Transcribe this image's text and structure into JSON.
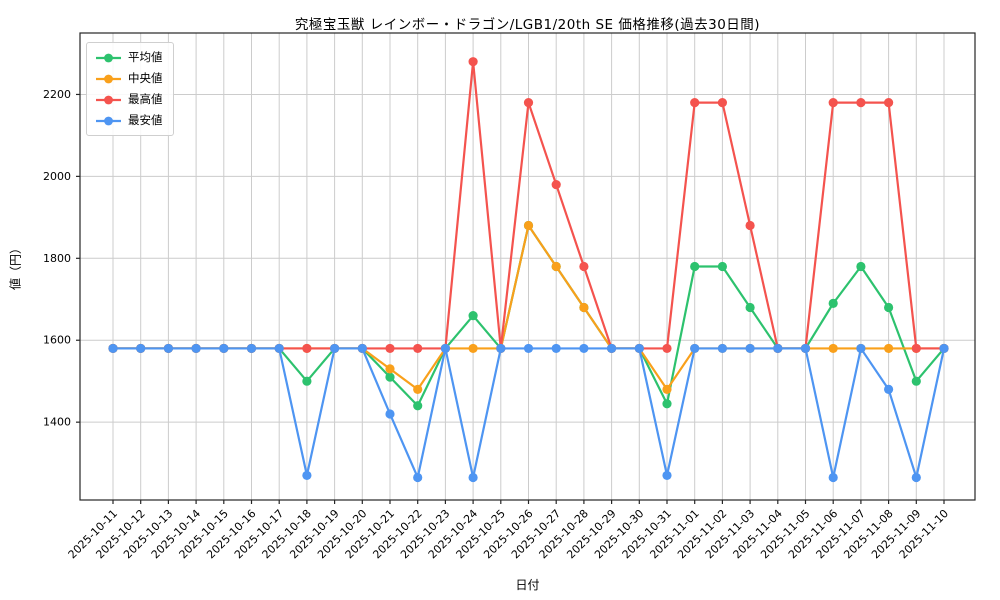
{
  "figure": {
    "title": "究極宝玉獣 レインボー・ドラゴン/LGB1/20th SE 価格推移(過去30日間)",
    "xlabel": "日付",
    "ylabel": "値（円）"
  },
  "chart_data": {
    "type": "line",
    "title": "究極宝玉獣 レインボー・ドラゴン/LGB1/20th SE 価格推移(過去30日間)",
    "xlabel": "日付",
    "ylabel": "値（円）",
    "x": [
      "2025-10-11",
      "2025-10-12",
      "2025-10-13",
      "2025-10-14",
      "2025-10-15",
      "2025-10-16",
      "2025-10-17",
      "2025-10-18",
      "2025-10-19",
      "2025-10-20",
      "2025-10-21",
      "2025-10-22",
      "2025-10-23",
      "2025-10-24",
      "2025-10-25",
      "2025-10-26",
      "2025-10-27",
      "2025-10-28",
      "2025-10-29",
      "2025-10-30",
      "2025-10-31",
      "2025-11-01",
      "2025-11-02",
      "2025-11-03",
      "2025-11-04",
      "2025-11-05",
      "2025-11-06",
      "2025-11-07",
      "2025-11-08",
      "2025-11-09",
      "2025-11-10"
    ],
    "series": [
      {
        "key": "avg",
        "name": "平均値",
        "color": "#2dc26e",
        "values": [
          1580,
          1580,
          1580,
          1580,
          1580,
          1580,
          1580,
          1500,
          1580,
          1580,
          1510,
          1440,
          1580,
          1660,
          1580,
          1880,
          1780,
          1680,
          1580,
          1580,
          1445,
          1780,
          1780,
          1680,
          1580,
          1580,
          1690,
          1780,
          1680,
          1500,
          1580
        ]
      },
      {
        "key": "median",
        "name": "中央値",
        "color": "#f9a01b",
        "values": [
          1580,
          1580,
          1580,
          1580,
          1580,
          1580,
          1580,
          1580,
          1580,
          1580,
          1530,
          1480,
          1580,
          1580,
          1580,
          1880,
          1780,
          1680,
          1580,
          1580,
          1480,
          1580,
          1580,
          1580,
          1580,
          1580,
          1580,
          1580,
          1580,
          1580,
          1580
        ]
      },
      {
        "key": "max",
        "name": "最高値",
        "color": "#f4534e",
        "values": [
          1580,
          1580,
          1580,
          1580,
          1580,
          1580,
          1580,
          1580,
          1580,
          1580,
          1580,
          1580,
          1580,
          2280,
          1580,
          2180,
          1980,
          1780,
          1580,
          1580,
          1580,
          2180,
          2180,
          1880,
          1580,
          1580,
          2180,
          2180,
          2180,
          1580,
          1580
        ]
      },
      {
        "key": "min",
        "name": "最安値",
        "color": "#4e95f2",
        "values": [
          1580,
          1580,
          1580,
          1580,
          1580,
          1580,
          1580,
          1270,
          1580,
          1580,
          1420,
          1265,
          1580,
          1265,
          1580,
          1580,
          1580,
          1580,
          1580,
          1580,
          1270,
          1580,
          1580,
          1580,
          1580,
          1580,
          1265,
          1580,
          1480,
          1265,
          1580
        ]
      }
    ],
    "yticks": [
      1400,
      1600,
      1800,
      2000,
      2200
    ],
    "ylim": [
      1210,
      2350
    ],
    "grid": true,
    "legend_position": "upper left",
    "marker": "circle"
  },
  "colors": {
    "grid": "#cccccc",
    "frame": "#262626",
    "tick_text": "#000000",
    "background": "#ffffff"
  }
}
